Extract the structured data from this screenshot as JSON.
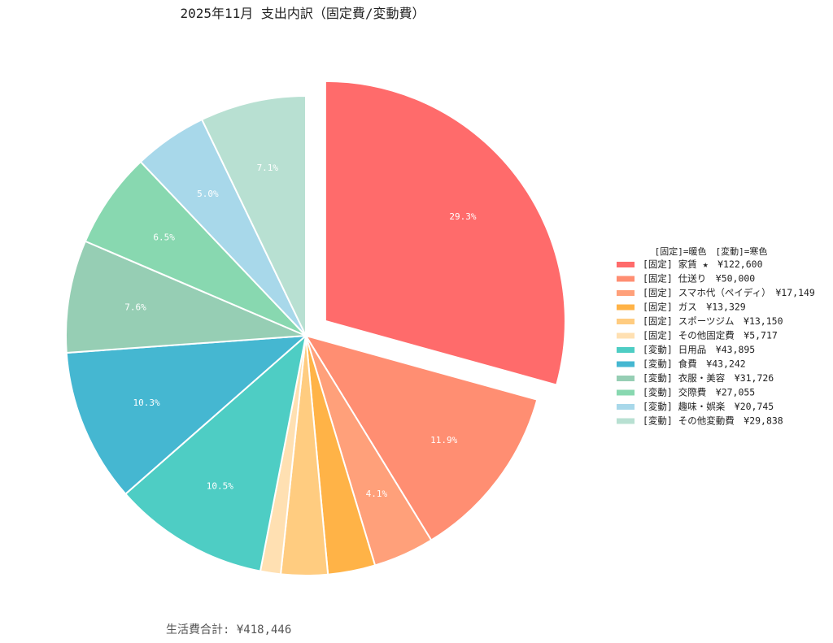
{
  "chart_data": {
    "type": "pie",
    "title": "2025年11月 支出内訳（固定費/変動費）",
    "legend_title": "[固定]=暖色　[変動]=寒色",
    "legend_position": "right",
    "footer": "生活費合計: ¥418,446",
    "slices": [
      {
        "label": "[固定] 家賃 ★　¥122,600",
        "value": 122600,
        "pct_label": "29.3%",
        "color": "#FF6B6B",
        "exploded": true
      },
      {
        "label": "[固定] 仕送り　¥50,000",
        "value": 50000,
        "pct_label": "11.9%",
        "color": "#FF8E72",
        "exploded": false
      },
      {
        "label": "[固定] スマホ代（ペイディ）　¥17,149",
        "value": 17149,
        "pct_label": "4.1%",
        "color": "#FFA07A",
        "exploded": false
      },
      {
        "label": "[固定] ガス　¥13,329",
        "value": 13329,
        "pct_label": "",
        "color": "#FFB347",
        "exploded": false
      },
      {
        "label": "[固定] スポーツジム　¥13,150",
        "value": 13150,
        "pct_label": "",
        "color": "#FFCC80",
        "exploded": false
      },
      {
        "label": "[固定] その他固定費　¥5,717",
        "value": 5717,
        "pct_label": "",
        "color": "#FFE0B2",
        "exploded": false
      },
      {
        "label": "[変動] 日用品　¥43,895",
        "value": 43895,
        "pct_label": "10.5%",
        "color": "#4ECDC4",
        "exploded": false
      },
      {
        "label": "[変動] 食費　¥43,242",
        "value": 43242,
        "pct_label": "10.3%",
        "color": "#45B7D1",
        "exploded": false
      },
      {
        "label": "[変動] 衣服・美容　¥31,726",
        "value": 31726,
        "pct_label": "7.6%",
        "color": "#96CEB4",
        "exploded": false
      },
      {
        "label": "[変動] 交際費　¥27,055",
        "value": 27055,
        "pct_label": "6.5%",
        "color": "#88D8B0",
        "exploded": false
      },
      {
        "label": "[変動] 趣味・娯楽　¥20,745",
        "value": 20745,
        "pct_label": "5.0%",
        "color": "#A8D8EA",
        "exploded": false
      },
      {
        "label": "[変動] その他変動費　¥29,838",
        "value": 29838,
        "pct_label": "7.1%",
        "color": "#B8E0D2",
        "exploded": false
      }
    ]
  }
}
